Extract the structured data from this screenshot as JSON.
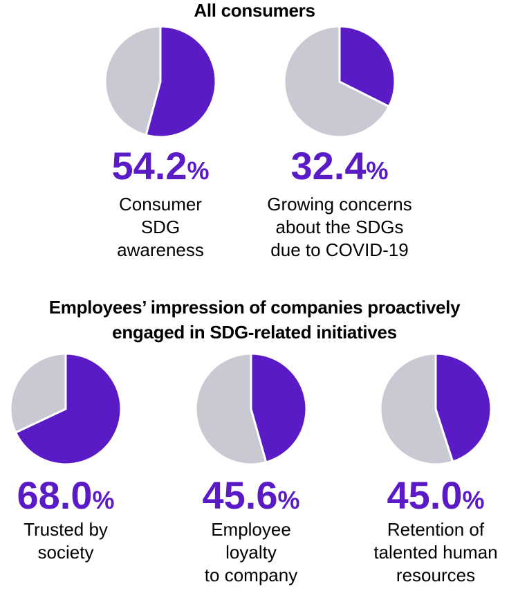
{
  "chart_data": [
    {
      "type": "pie",
      "title": "All consumers",
      "categories": [
        "Consumer\nSDG\nawareness",
        "Growing concerns\nabout the SDGs\ndue to COVID-19"
      ],
      "values": [
        54.2,
        32.4
      ],
      "value_labels": [
        "54.2%",
        "32.4%"
      ],
      "color": "#5a1bc6",
      "rest_color": "#c9c9d3"
    },
    {
      "type": "pie",
      "title": "Employees’ impression of companies proactively\nengaged in SDG-related initiatives",
      "categories": [
        "Trusted by\nsociety",
        "Employee\nloyalty\nto company",
        "Retention of\ntalented human\nresources"
      ],
      "values": [
        68.0,
        45.6,
        45.0
      ],
      "value_labels": [
        "68.0%",
        "45.6%",
        "45.0%"
      ],
      "color": "#5a1bc6",
      "rest_color": "#c9c9d3"
    }
  ]
}
